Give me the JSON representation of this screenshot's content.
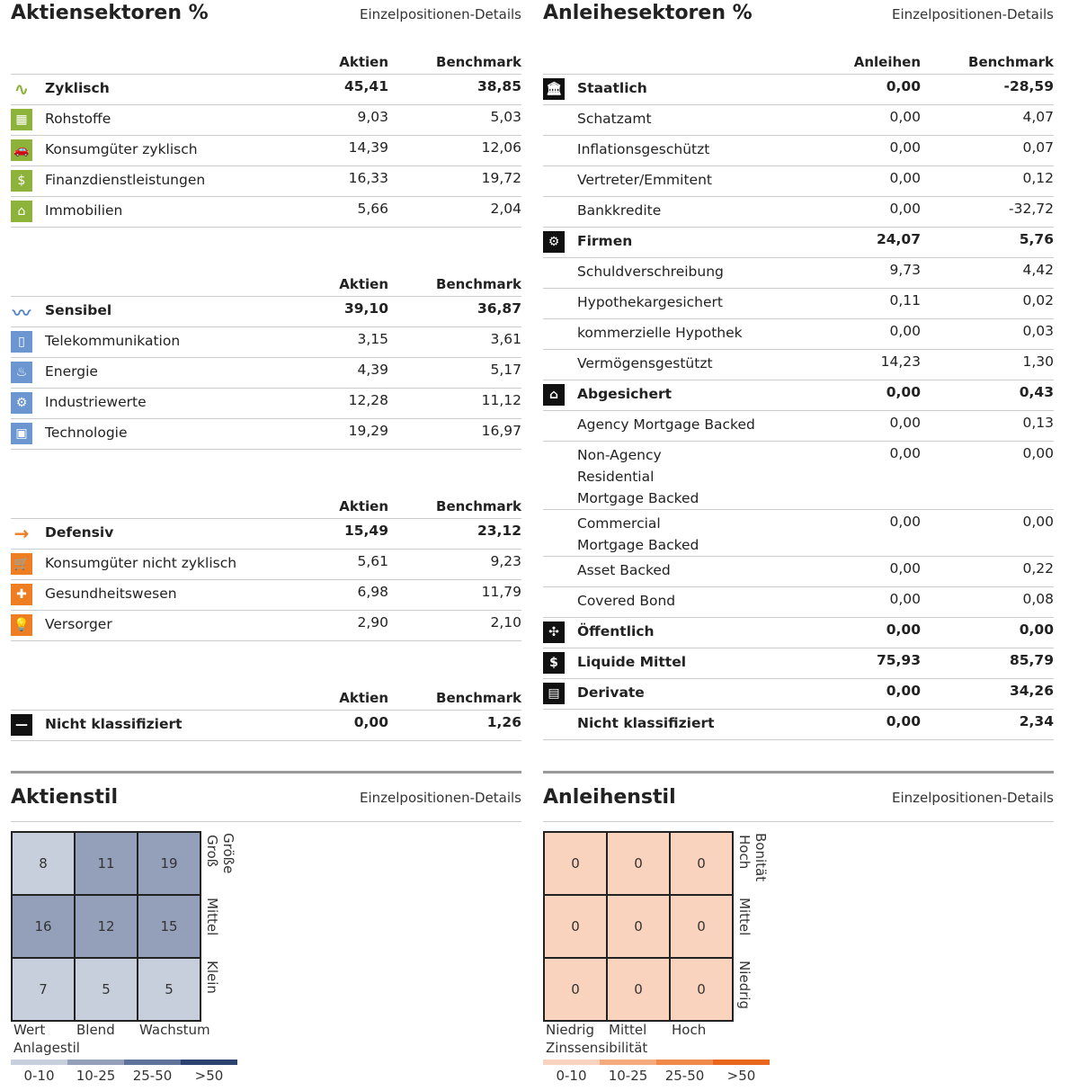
{
  "equity": {
    "title": "Aktiensektoren %",
    "link": "Einzelpositionen-Details",
    "col1": "Aktien",
    "col2": "Benchmark",
    "sections": [
      {
        "rows": [
          {
            "label": "Zyklisch",
            "a": "45,41",
            "b": "38,85",
            "bold": true,
            "icon": "cyclical-icon",
            "color": "#8db33a",
            "glyph": "∿"
          },
          {
            "label": "Rohstoffe",
            "a": "9,03",
            "b": "5,03",
            "icon": "basic-materials-icon",
            "color": "#8db33a",
            "glyph": "▦"
          },
          {
            "label": "Konsumgüter zyklisch",
            "a": "14,39",
            "b": "12,06",
            "icon": "car-icon",
            "color": "#8db33a",
            "glyph": "🚗"
          },
          {
            "label": "Finanzdienstleistungen",
            "a": "16,33",
            "b": "19,72",
            "icon": "financial-icon",
            "color": "#8db33a",
            "glyph": "$"
          },
          {
            "label": "Immobilien",
            "a": "5,66",
            "b": "2,04",
            "icon": "house-icon",
            "color": "#8db33a",
            "glyph": "⌂"
          }
        ]
      },
      {
        "rows": [
          {
            "label": "Sensibel",
            "a": "39,10",
            "b": "36,87",
            "bold": true,
            "icon": "sensitive-icon",
            "color": "#5b86c5",
            "glyph": "〰"
          },
          {
            "label": "Telekommunikation",
            "a": "3,15",
            "b": "3,61",
            "icon": "phone-icon",
            "color": "#6b96d0",
            "glyph": "▯"
          },
          {
            "label": "Energie",
            "a": "4,39",
            "b": "5,17",
            "icon": "flame-icon",
            "color": "#6b96d0",
            "glyph": "♨"
          },
          {
            "label": "Industriewerte",
            "a": "12,28",
            "b": "11,12",
            "icon": "gear-icon",
            "color": "#6b96d0",
            "glyph": "⚙"
          },
          {
            "label": "Technologie",
            "a": "19,29",
            "b": "16,97",
            "icon": "computer-icon",
            "color": "#6b96d0",
            "glyph": "▣"
          }
        ]
      },
      {
        "rows": [
          {
            "label": "Defensiv",
            "a": "15,49",
            "b": "23,12",
            "bold": true,
            "icon": "arrow-right-icon",
            "color": "#ef7d22",
            "glyph": "→"
          },
          {
            "label": "Konsumgüter nicht zyklisch",
            "a": "5,61",
            "b": "9,23",
            "icon": "cart-icon",
            "color": "#ef7d22",
            "glyph": "🛒"
          },
          {
            "label": "Gesundheitswesen",
            "a": "6,98",
            "b": "11,79",
            "icon": "cross-icon",
            "color": "#ef7d22",
            "glyph": "✚"
          },
          {
            "label": "Versorger",
            "a": "2,90",
            "b": "2,10",
            "icon": "bulb-icon",
            "color": "#ef7d22",
            "glyph": "💡"
          }
        ]
      },
      {
        "rows": [
          {
            "label": "Nicht klassifiziert",
            "a": "0,00",
            "b": "1,26",
            "bold": true,
            "icon": "minus-icon",
            "color": "#111",
            "glyph": "—"
          }
        ]
      }
    ]
  },
  "bond": {
    "title": "Anleihesektoren %",
    "link": "Einzelpositionen-Details",
    "col1": "Anleihen",
    "col2": "Benchmark",
    "rows": [
      {
        "label": "Staatlich",
        "a": "0,00",
        "b": "-28,59",
        "bold": true,
        "icon": "government-icon",
        "glyph": "🏛"
      },
      {
        "label": "Schatzamt",
        "a": "0,00",
        "b": "4,07"
      },
      {
        "label": "Inflationsgeschützt",
        "a": "0,00",
        "b": "0,07"
      },
      {
        "label": "Vertreter/Emmitent",
        "a": "0,00",
        "b": "0,12"
      },
      {
        "label": "Bankkredite",
        "a": "0,00",
        "b": "-32,72"
      },
      {
        "label": "Firmen",
        "a": "24,07",
        "b": "5,76",
        "bold": true,
        "icon": "corporate-icon",
        "glyph": "⚙"
      },
      {
        "label": "Schuldverschreibung",
        "a": "9,73",
        "b": "4,42"
      },
      {
        "label": "Hypothekargesichert",
        "a": "0,11",
        "b": "0,02"
      },
      {
        "label": "kommerzielle Hypothek",
        "a": "0,00",
        "b": "0,03"
      },
      {
        "label": "Vermögensgestützt",
        "a": "14,23",
        "b": "1,30"
      },
      {
        "label": "Abgesichert",
        "a": "0,00",
        "b": "0,43",
        "bold": true,
        "icon": "securitized-house-icon",
        "glyph": "⌂"
      },
      {
        "label": "Agency Mortgage Backed",
        "a": "0,00",
        "b": "0,13"
      },
      {
        "label": "Non-Agency Residential Mortgage Backed",
        "a": "0,00",
        "b": "0,00"
      },
      {
        "label": "Commercial Mortgage Backed",
        "a": "0,00",
        "b": "0,00"
      },
      {
        "label": "Asset Backed",
        "a": "0,00",
        "b": "0,22"
      },
      {
        "label": "Covered Bond",
        "a": "0,00",
        "b": "0,08"
      },
      {
        "label": "Öffentlich",
        "a": "0,00",
        "b": "0,00",
        "bold": true,
        "icon": "municipal-icon",
        "glyph": "✣"
      },
      {
        "label": "Liquide Mittel",
        "a": "75,93",
        "b": "85,79",
        "bold": true,
        "icon": "cash-icon",
        "glyph": "$"
      },
      {
        "label": "Derivate",
        "a": "0,00",
        "b": "34,26",
        "bold": true,
        "icon": "document-icon",
        "glyph": "▤"
      },
      {
        "label": "Nicht klassifiziert",
        "a": "0,00",
        "b": "2,34",
        "bold": true
      }
    ]
  },
  "equity_style": {
    "title": "Aktienstil",
    "link": "Einzelpositionen-Details",
    "cells": [
      "8",
      "11",
      "19",
      "16",
      "12",
      "15",
      "7",
      "5",
      "5"
    ],
    "levels": [
      0,
      1,
      1,
      1,
      1,
      1,
      0,
      0,
      0
    ],
    "row_title": "Größe",
    "rows": [
      "Groß",
      "Mittel",
      "Klein"
    ],
    "cols": [
      "Wert",
      "Blend",
      "Wachstum"
    ],
    "axis": "Anlagestil",
    "legend": [
      "0-10",
      "10-25",
      "25-50",
      ">50"
    ],
    "legend_colors": [
      "#c8cfdc",
      "#949fb9",
      "#5f7299",
      "#2c4372"
    ]
  },
  "bond_style": {
    "title": "Anleihenstil",
    "link": "Einzelpositionen-Details",
    "cells": [
      "0",
      "0",
      "0",
      "0",
      "0",
      "0",
      "0",
      "0",
      "0"
    ],
    "levels": [
      0,
      0,
      0,
      0,
      0,
      0,
      0,
      0,
      0
    ],
    "row_title": "Bonität",
    "rows": [
      "Hoch",
      "Mittel",
      "Niedrig"
    ],
    "cols": [
      "Niedrig",
      "Mittel",
      "Hoch"
    ],
    "axis": "Zinssensibilität",
    "legend": [
      "0-10",
      "10-25",
      "25-50",
      ">50"
    ],
    "legend_colors": [
      "#f9d3bd",
      "#f4aa7c",
      "#f08a4b",
      "#e8671c"
    ]
  }
}
